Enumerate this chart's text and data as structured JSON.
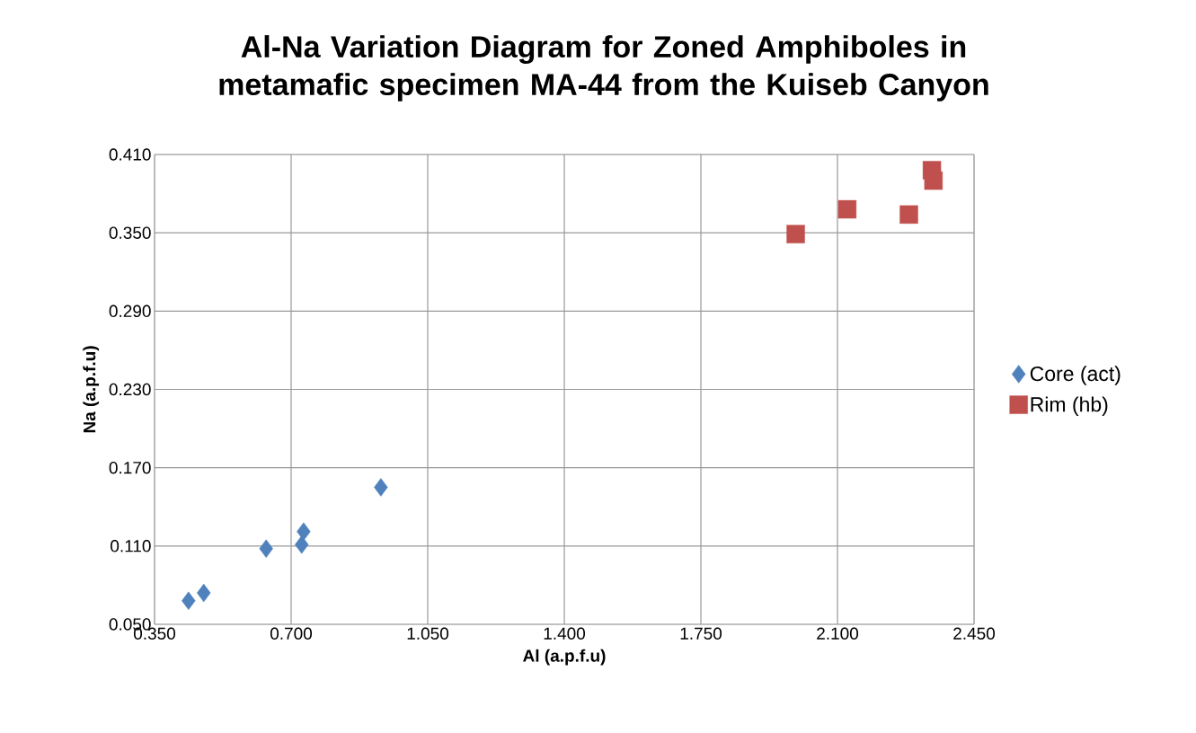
{
  "chart_data": {
    "type": "scatter",
    "title": "Al-Na Variation Diagram for Zoned Amphiboles in metamafic specimen MA-44 from the Kuiseb Canyon",
    "xlabel": "Al (a.p.f.u)",
    "ylabel": "Na (a.p.f.u)",
    "series": [
      {
        "name": "Core (act)",
        "color": "#4f81bd",
        "marker": "diamond",
        "x": [
          0.437,
          0.476,
          0.636,
          0.727,
          0.732,
          0.93
        ],
        "values": [
          0.068,
          0.074,
          0.108,
          0.111,
          0.121,
          0.155
        ]
      },
      {
        "name": "Rim (hb)",
        "color": "#c0504d",
        "marker": "square",
        "x": [
          1.993,
          2.125,
          2.283,
          2.342,
          2.346
        ],
        "values": [
          0.349,
          0.368,
          0.364,
          0.398,
          0.39
        ]
      }
    ],
    "xlim": [
      0.35,
      2.45
    ],
    "ylim": [
      0.05,
      0.41
    ],
    "xticks": [
      {
        "value": 0.35,
        "label": "0.350"
      },
      {
        "value": 0.7,
        "label": "0.700"
      },
      {
        "value": 1.05,
        "label": "1.050"
      },
      {
        "value": 1.4,
        "label": "1.400"
      },
      {
        "value": 1.75,
        "label": "1.750"
      },
      {
        "value": 2.1,
        "label": "2.100"
      },
      {
        "value": 2.45,
        "label": "2.450"
      }
    ],
    "yticks": [
      {
        "value": 0.05,
        "label": "0.050"
      },
      {
        "value": 0.11,
        "label": "0.110"
      },
      {
        "value": 0.17,
        "label": "0.170"
      },
      {
        "value": 0.23,
        "label": "0.230"
      },
      {
        "value": 0.29,
        "label": "0.290"
      },
      {
        "value": 0.35,
        "label": "0.350"
      },
      {
        "value": 0.41,
        "label": "0.410"
      }
    ],
    "grid": true,
    "legend": "right"
  }
}
